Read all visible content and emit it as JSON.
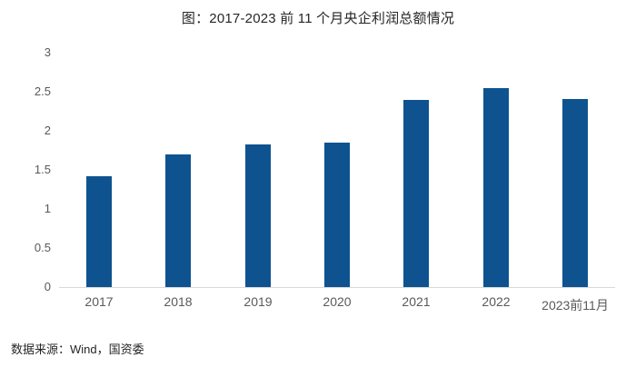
{
  "title": "图：2017-2023 前 11 个月央企利润总额情况",
  "source": "数据来源：Wind，国资委",
  "colors": {
    "bar": "#0e538f",
    "axis_line": "#d9d9d9",
    "tick_label": "#595959",
    "title_text": "#262626"
  },
  "chart_data": {
    "type": "bar",
    "title": "图：2017-2023 前 11 个月央企利润总额情况",
    "categories": [
      "2017",
      "2018",
      "2019",
      "2020",
      "2021",
      "2022",
      "2023前11月"
    ],
    "values": [
      1.42,
      1.7,
      1.82,
      1.85,
      2.4,
      2.55,
      2.41
    ],
    "xlabel": "",
    "ylabel": "",
    "ylim": [
      0,
      3
    ],
    "ytick_step": 0.5,
    "ytick_labels": [
      "0",
      "0.5",
      "1",
      "1.5",
      "2",
      "2.5",
      "3"
    ],
    "grid": false,
    "legend_position": "none",
    "source_note": "数据来源：Wind，国资委"
  }
}
